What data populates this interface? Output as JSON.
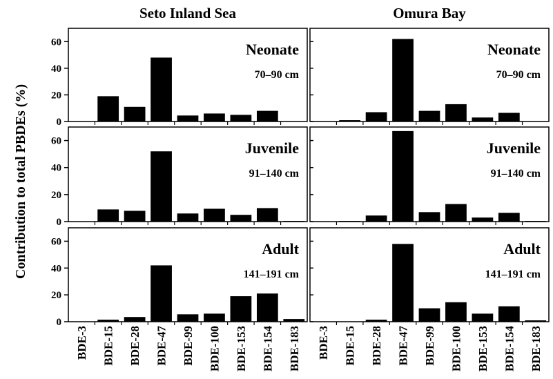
{
  "figure": {
    "ylabel": "Contribution to total PBDEs (%)",
    "columns": [
      "Seto Inland Sea",
      "Omura Bay"
    ]
  },
  "chart_data": {
    "type": "bar",
    "categories": [
      "BDE-3",
      "BDE-15",
      "BDE-28",
      "BDE-47",
      "BDE-99",
      "BDE-100",
      "BDE-153",
      "BDE-154",
      "BDE-183"
    ],
    "ylim": [
      0,
      70
    ],
    "yticks": [
      0,
      20,
      40,
      60
    ],
    "ylabel": "Contribution to total PBDEs (%)",
    "grid": false,
    "panels": [
      {
        "location": "Seto Inland Sea",
        "stage": "Neonate",
        "size": "70–90 cm",
        "values": [
          0,
          19,
          11,
          48,
          4.5,
          6,
          5,
          8,
          0
        ]
      },
      {
        "location": "Omura Bay",
        "stage": "Neonate",
        "size": "70–90 cm",
        "values": [
          0,
          1,
          7,
          62,
          8,
          13,
          3,
          6.5,
          0
        ]
      },
      {
        "location": "Seto Inland Sea",
        "stage": "Juvenile",
        "size": "91–140 cm",
        "values": [
          0,
          9,
          8,
          52,
          6,
          9.5,
          5,
          10,
          0.5
        ]
      },
      {
        "location": "Omura Bay",
        "stage": "Juvenile",
        "size": "91–140 cm",
        "values": [
          0,
          0.5,
          4.5,
          67,
          7,
          13,
          3,
          6.5,
          0.5
        ]
      },
      {
        "location": "Seto Inland Sea",
        "stage": "Adult",
        "size": "141–191 cm",
        "values": [
          0,
          1.5,
          3.5,
          42,
          5.5,
          6,
          19,
          21,
          2
        ]
      },
      {
        "location": "Omura Bay",
        "stage": "Adult",
        "size": "141–191 cm",
        "values": [
          0,
          0,
          1.5,
          58,
          10,
          14.5,
          6,
          11.5,
          1
        ]
      }
    ]
  }
}
